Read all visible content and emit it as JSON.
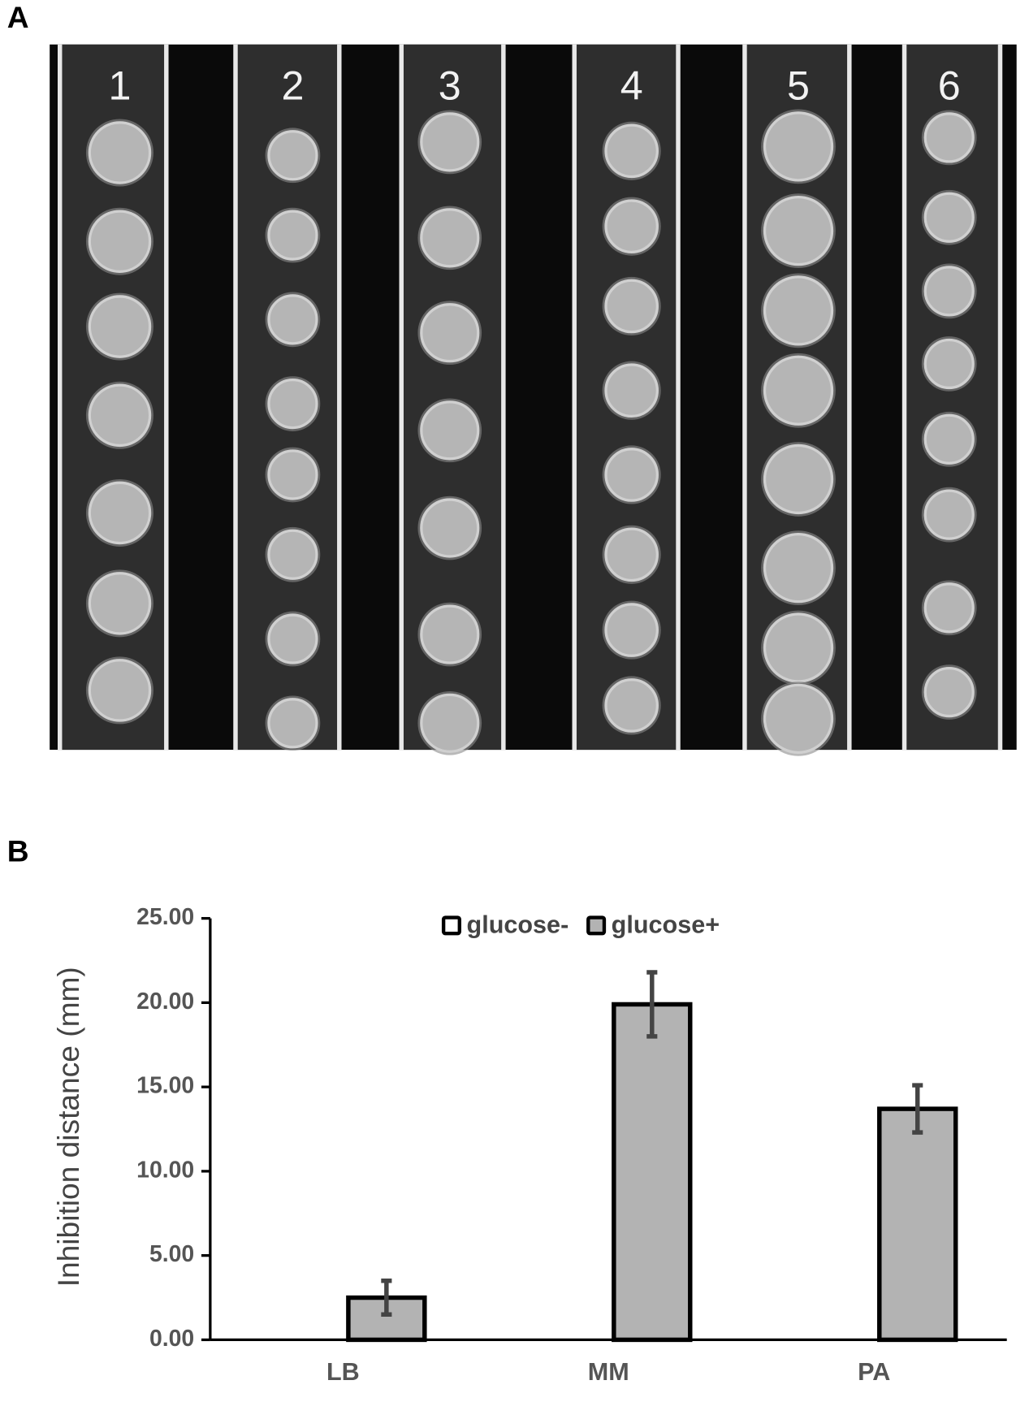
{
  "panel_labels": [
    "A",
    "B"
  ],
  "photo": {
    "lane_labels": [
      "1",
      "2",
      "3",
      "4",
      "5",
      "6"
    ]
  },
  "chart_data": {
    "type": "bar",
    "y_label": "Inhibition distance (mm)",
    "categories": [
      "LB",
      "MM",
      "PA"
    ],
    "series": [
      {
        "name": "glucose-",
        "color": "#ffffff",
        "values": [
          0,
          0,
          0
        ]
      },
      {
        "name": "glucose+",
        "color": "#b3b3b3",
        "values": [
          2.5,
          19.9,
          13.7
        ],
        "errors": [
          1.0,
          1.9,
          1.4
        ]
      }
    ],
    "ylim": [
      0,
      25
    ],
    "yticks": [
      {
        "value": 0,
        "label": "0.00"
      },
      {
        "value": 5,
        "label": "5.00"
      },
      {
        "value": 10,
        "label": "10.00"
      },
      {
        "value": 15,
        "label": "15.00"
      },
      {
        "value": 20,
        "label": "20.00"
      },
      {
        "value": 25,
        "label": "25.00"
      }
    ],
    "legend": "top"
  }
}
